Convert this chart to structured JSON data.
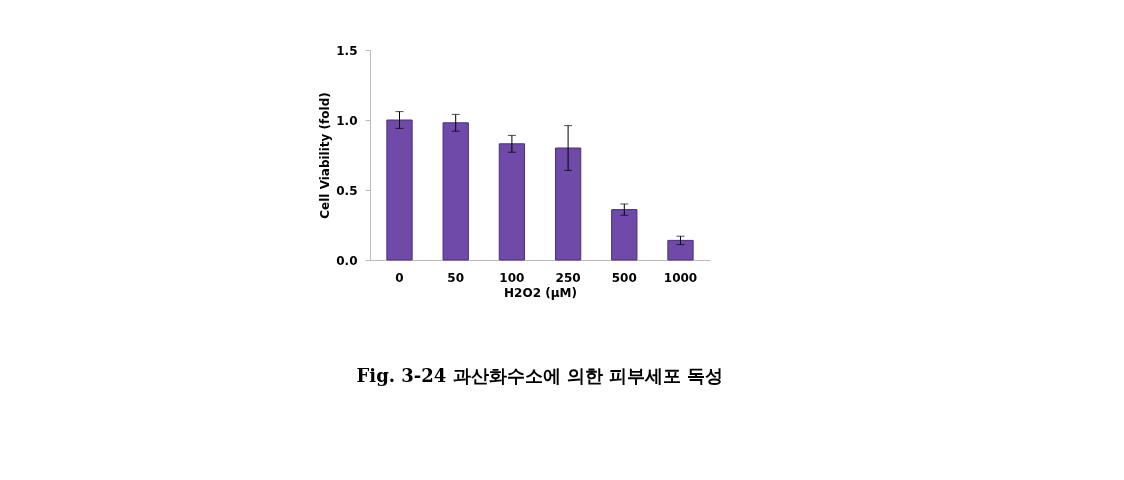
{
  "chart_data": {
    "type": "bar",
    "title": "Fig. 3-24 과산화수소에 의한 피부세포 독성",
    "xlabel": "H2O2 (μM)",
    "ylabel": "Cell Viability (fold)",
    "categories": [
      "0",
      "50",
      "100",
      "250",
      "500",
      "1000"
    ],
    "values": [
      1.0,
      0.98,
      0.83,
      0.8,
      0.36,
      0.14
    ],
    "errors": [
      0.06,
      0.06,
      0.06,
      0.16,
      0.04,
      0.03
    ],
    "color": "#6f4aa8",
    "ylim": [
      0,
      1.5
    ],
    "yticks": [
      {
        "value": 0,
        "label": "0.0"
      },
      {
        "value": 0.5,
        "label": "0.5"
      },
      {
        "value": 1,
        "label": "1.0"
      },
      {
        "value": 1.5,
        "label": "1.5"
      }
    ],
    "grid": false
  }
}
